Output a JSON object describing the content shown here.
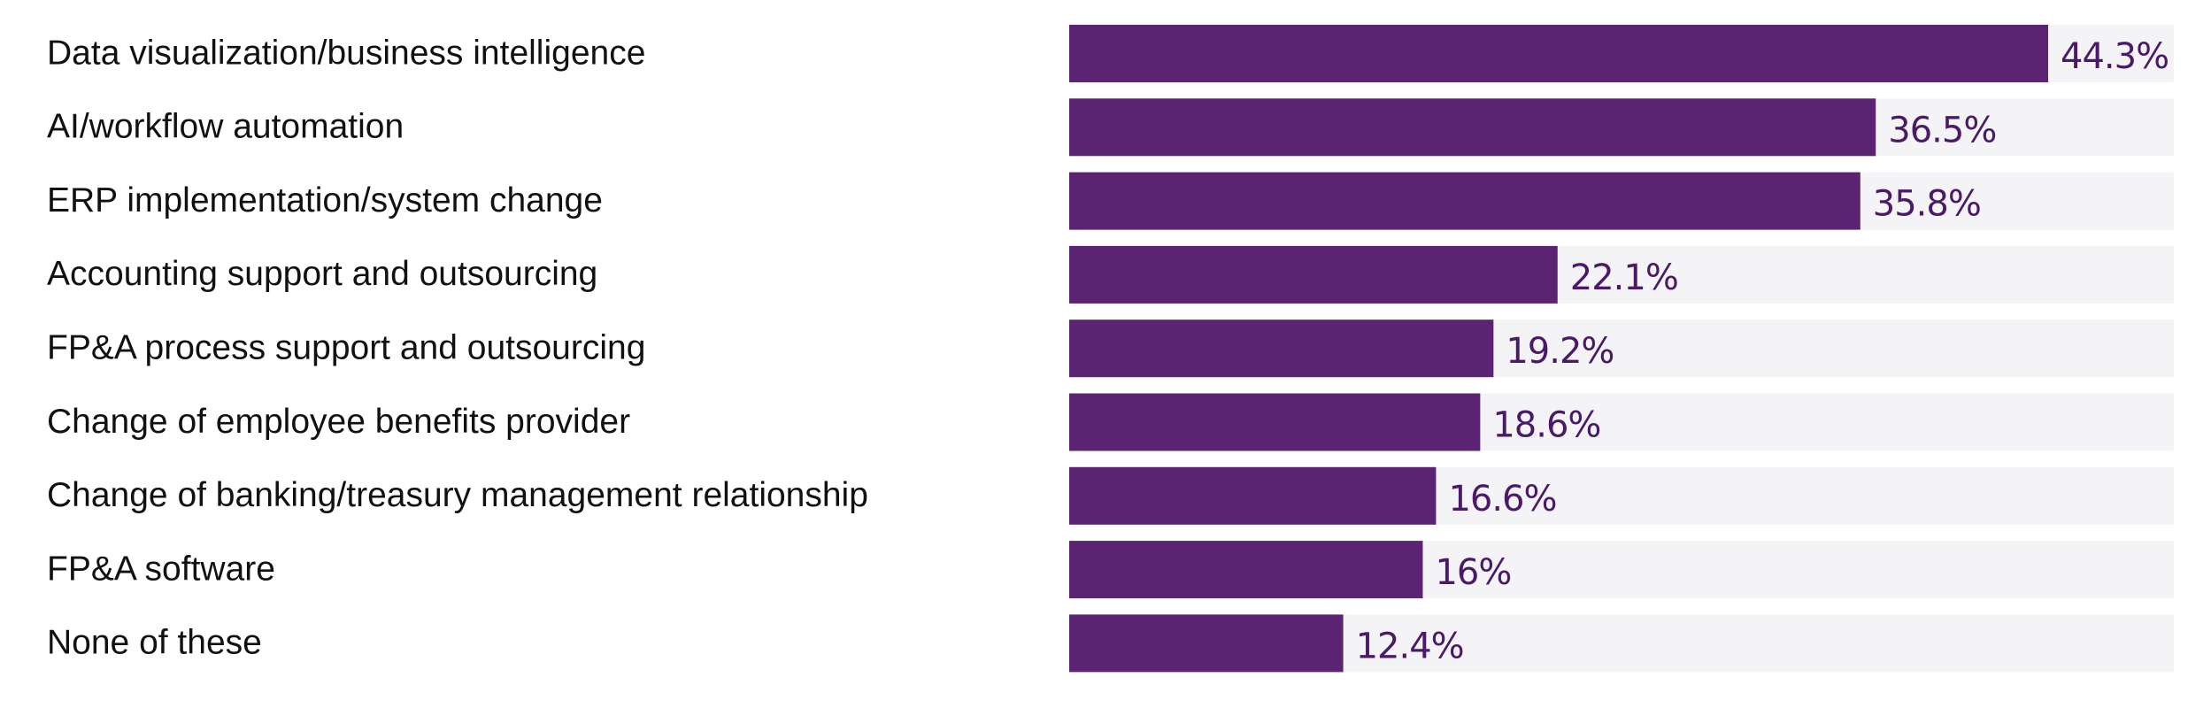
{
  "chart_data": {
    "type": "bar",
    "orientation": "horizontal",
    "categories": [
      "Data visualization/business intelligence",
      "AI/workflow automation",
      "ERP implementation/system change",
      "Accounting support and outsourcing",
      "FP&A process support and outsourcing",
      "Change of employee benefits provider",
      "Change of banking/treasury management relationship",
      "FP&A software",
      "None of these"
    ],
    "values": [
      44.3,
      36.5,
      35.8,
      22.1,
      19.2,
      18.6,
      16.6,
      16,
      12.4
    ],
    "value_labels": [
      "44.3%",
      "36.5%",
      "35.8%",
      "22.1%",
      "19.2%",
      "18.6%",
      "16.6%",
      "16%",
      "12.4%"
    ],
    "xlim": [
      0,
      50
    ],
    "grid": false,
    "legend": "none",
    "colors": {
      "bar": "#5a2473",
      "track": "#f4f4f7",
      "value_text": "#4a1a68",
      "label_text": "#111111"
    }
  }
}
